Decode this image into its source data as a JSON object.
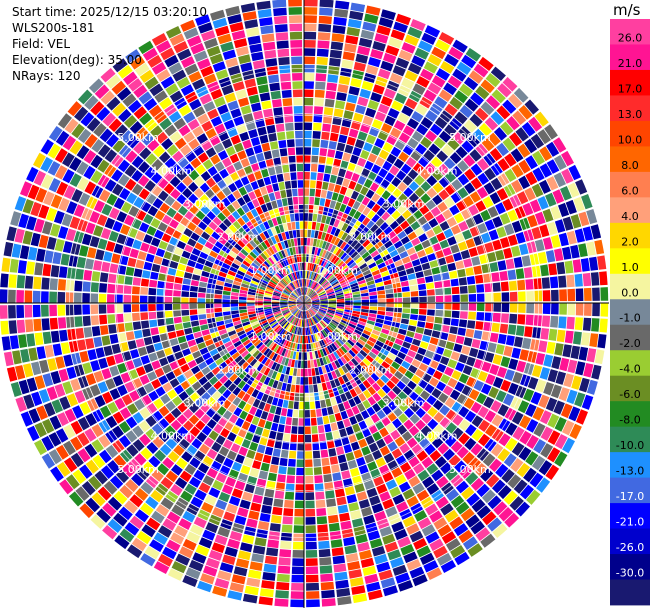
{
  "info": {
    "start_time": "Start time: 2025/12/15 03:20:10",
    "instrument": "WLS200s-181",
    "field": "Field: VEL",
    "elevation": "Elevation(deg): 35.00",
    "nrays": "NRays: 120"
  },
  "chart_data": {
    "type": "heatmap",
    "projection": "polar",
    "field": "VEL",
    "units": "m/s",
    "n_rays": 120,
    "n_gates": 37,
    "max_range_km": 6.5,
    "pattern_seed": 181,
    "range_ring_labels": [
      "1.00km",
      "2.00km",
      "3.00km",
      "4.00km",
      "5.00km"
    ],
    "colorbar": {
      "label": "m/s",
      "tick_labels": [
        "26.0",
        "21.0",
        "17.0",
        "13.0",
        "10.0",
        "8.0",
        "6.0",
        "4.0",
        "2.0",
        "1.0",
        "0.0",
        "-1.0",
        "-2.0",
        "-4.0",
        "-6.0",
        "-8.0",
        "-10.0",
        "-13.0",
        "-17.0",
        "-21.0",
        "-26.0",
        "-30.0"
      ],
      "colors": [
        "#ff3fa0",
        "#ff1493",
        "#ff0000",
        "#ff2b2b",
        "#ff4500",
        "#ff6600",
        "#ff7f50",
        "#ffa07a",
        "#ffd700",
        "#ffff00",
        "#f5f5a0",
        "#778899",
        "#696969",
        "#9acd32",
        "#6b8e23",
        "#228b22",
        "#2e8b57",
        "#1e90ff",
        "#4169e1",
        "#0000ff",
        "#0000cd",
        "#00008b",
        "#191970"
      ]
    }
  }
}
